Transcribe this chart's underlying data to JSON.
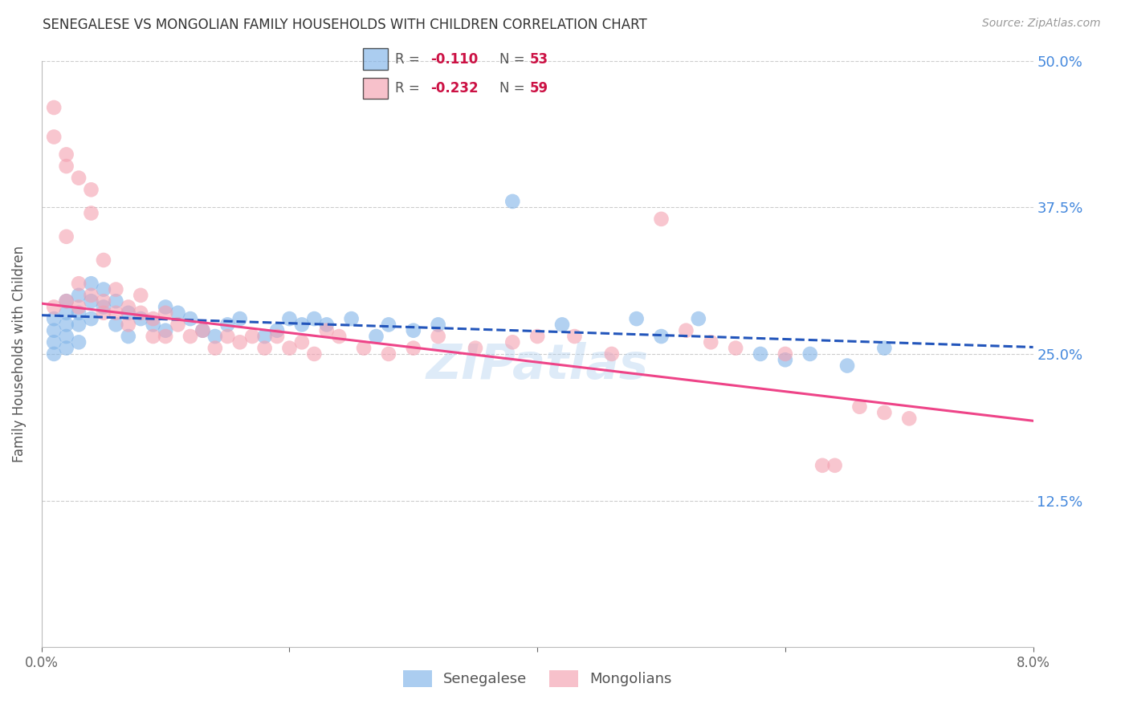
{
  "title": "SENEGALESE VS MONGOLIAN FAMILY HOUSEHOLDS WITH CHILDREN CORRELATION CHART",
  "source": "Source: ZipAtlas.com",
  "ylabel": "Family Households with Children",
  "xmin": 0.0,
  "xmax": 0.08,
  "ymin": 0.0,
  "ymax": 0.5,
  "yticks": [
    0.125,
    0.25,
    0.375,
    0.5
  ],
  "ytick_labels": [
    "12.5%",
    "25.0%",
    "37.5%",
    "50.0%"
  ],
  "xticks": [
    0.0,
    0.02,
    0.04,
    0.06,
    0.08
  ],
  "senegalese_color": "#7fb3e8",
  "mongolian_color": "#f4a0b0",
  "trend_senegalese_color": "#2255bb",
  "trend_mongolian_color": "#ee4488",
  "senegalese_x": [
    0.001,
    0.001,
    0.001,
    0.001,
    0.002,
    0.002,
    0.002,
    0.002,
    0.002,
    0.003,
    0.003,
    0.003,
    0.003,
    0.004,
    0.004,
    0.004,
    0.005,
    0.005,
    0.006,
    0.006,
    0.007,
    0.007,
    0.008,
    0.009,
    0.01,
    0.01,
    0.011,
    0.012,
    0.013,
    0.014,
    0.015,
    0.016,
    0.018,
    0.019,
    0.02,
    0.021,
    0.022,
    0.023,
    0.025,
    0.027,
    0.028,
    0.03,
    0.032,
    0.038,
    0.042,
    0.048,
    0.05,
    0.053,
    0.058,
    0.06,
    0.062,
    0.065,
    0.068
  ],
  "senegalese_y": [
    0.28,
    0.27,
    0.26,
    0.25,
    0.295,
    0.285,
    0.275,
    0.265,
    0.255,
    0.3,
    0.285,
    0.275,
    0.26,
    0.31,
    0.295,
    0.28,
    0.305,
    0.29,
    0.295,
    0.275,
    0.285,
    0.265,
    0.28,
    0.275,
    0.29,
    0.27,
    0.285,
    0.28,
    0.27,
    0.265,
    0.275,
    0.28,
    0.265,
    0.27,
    0.28,
    0.275,
    0.28,
    0.275,
    0.28,
    0.265,
    0.275,
    0.27,
    0.275,
    0.38,
    0.275,
    0.28,
    0.265,
    0.28,
    0.25,
    0.245,
    0.25,
    0.24,
    0.255
  ],
  "mongolian_x": [
    0.001,
    0.001,
    0.001,
    0.002,
    0.002,
    0.002,
    0.002,
    0.003,
    0.003,
    0.003,
    0.004,
    0.004,
    0.004,
    0.005,
    0.005,
    0.005,
    0.006,
    0.006,
    0.007,
    0.007,
    0.008,
    0.008,
    0.009,
    0.009,
    0.01,
    0.01,
    0.011,
    0.012,
    0.013,
    0.014,
    0.015,
    0.016,
    0.017,
    0.018,
    0.019,
    0.02,
    0.021,
    0.022,
    0.023,
    0.024,
    0.026,
    0.028,
    0.03,
    0.032,
    0.035,
    0.038,
    0.04,
    0.043,
    0.046,
    0.05,
    0.052,
    0.054,
    0.056,
    0.06,
    0.063,
    0.064,
    0.066,
    0.068,
    0.07
  ],
  "mongolian_y": [
    0.46,
    0.435,
    0.29,
    0.42,
    0.41,
    0.35,
    0.295,
    0.4,
    0.31,
    0.29,
    0.39,
    0.37,
    0.3,
    0.33,
    0.295,
    0.285,
    0.305,
    0.285,
    0.29,
    0.275,
    0.3,
    0.285,
    0.28,
    0.265,
    0.285,
    0.265,
    0.275,
    0.265,
    0.27,
    0.255,
    0.265,
    0.26,
    0.265,
    0.255,
    0.265,
    0.255,
    0.26,
    0.25,
    0.27,
    0.265,
    0.255,
    0.25,
    0.255,
    0.265,
    0.255,
    0.26,
    0.265,
    0.265,
    0.25,
    0.365,
    0.27,
    0.26,
    0.255,
    0.25,
    0.155,
    0.155,
    0.205,
    0.2,
    0.195
  ],
  "watermark": "ZIPatlas",
  "R_sen": "-0.110",
  "N_sen": "53",
  "R_mon": "-0.232",
  "N_mon": "59"
}
